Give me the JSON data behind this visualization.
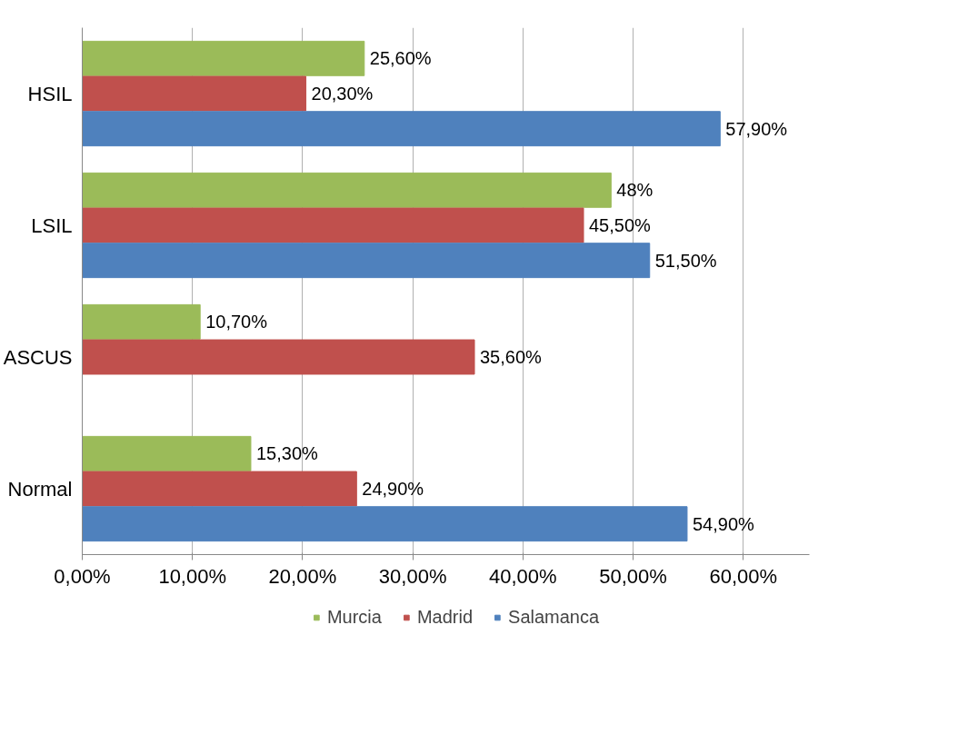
{
  "chart_data": {
    "type": "bar",
    "orientation": "horizontal",
    "categories": [
      "HSIL",
      "LSIL",
      "ASCUS",
      "Normal"
    ],
    "series": [
      {
        "name": "Murcia",
        "color": "#9bbb59",
        "values": [
          25.6,
          48,
          10.7,
          15.3
        ],
        "value_labels": [
          "25,60%",
          "48%",
          "10,70%",
          "15,30%"
        ]
      },
      {
        "name": "Madrid",
        "color": "#c0504d",
        "values": [
          20.3,
          45.5,
          35.6,
          24.9
        ],
        "value_labels": [
          "20,30%",
          "45,50%",
          "35,60%",
          "24,90%"
        ]
      },
      {
        "name": "Salamanca",
        "color": "#4f81bd",
        "values": [
          57.9,
          51.5,
          null,
          54.9
        ],
        "value_labels": [
          "57,90%",
          "51,50%",
          null,
          "54,90%"
        ]
      }
    ],
    "xlim": [
      0,
      66
    ],
    "xticks": [
      {
        "value": 0,
        "label": "0,00%"
      },
      {
        "value": 10,
        "label": "10,00%"
      },
      {
        "value": 20,
        "label": "20,00%"
      },
      {
        "value": 30,
        "label": "30,00%"
      },
      {
        "value": 40,
        "label": "40,00%"
      },
      {
        "value": 50,
        "label": "50,00%"
      },
      {
        "value": 60,
        "label": "60,00%"
      }
    ],
    "grid": "x",
    "legend": "bottom"
  }
}
